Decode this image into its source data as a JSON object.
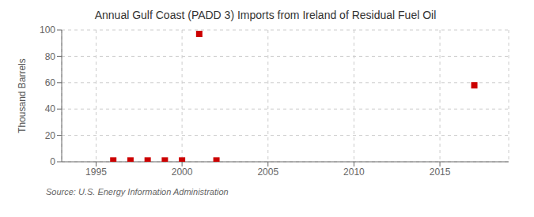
{
  "chart_data": {
    "type": "scatter",
    "title": "Annual Gulf Coast (PADD 3) Imports from Ireland of Residual Fuel Oil",
    "ylabel": "Thousand Barrels",
    "annotation": "Source: U.S. Energy Information Administration",
    "x": [
      1996,
      1997,
      1998,
      1999,
      2000,
      2001,
      2002,
      2017
    ],
    "values": [
      1,
      1,
      1,
      1,
      1,
      97,
      1,
      58
    ],
    "color": "#cc0000",
    "marker": "square",
    "xlim": [
      1993,
      2019
    ],
    "xticks": [
      1995,
      2000,
      2005,
      2010,
      2015
    ],
    "ylim": [
      0,
      100
    ],
    "yticks": [
      0,
      20,
      40,
      60,
      80,
      100
    ],
    "grid": true
  }
}
